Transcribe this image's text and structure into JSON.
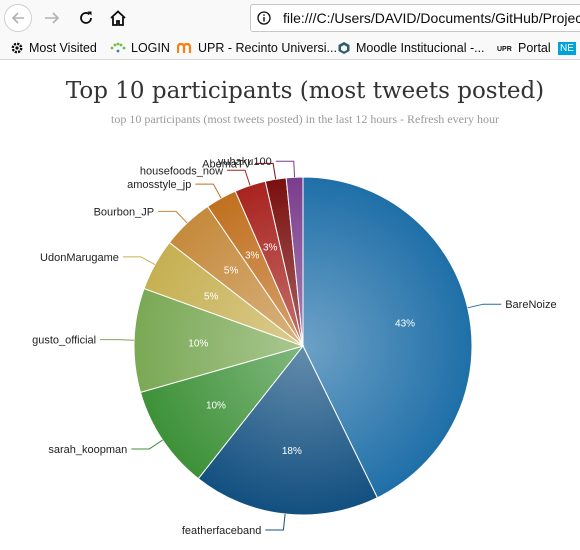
{
  "browser": {
    "url": "file:///C:/Users/DAVID/Documents/GitHub/Projec",
    "bookmarks": [
      {
        "label": "Most Visited",
        "icon": "gear-icon"
      },
      {
        "label": "LOGIN",
        "icon": "dots-icon"
      },
      {
        "label": "UPR - Recinto Universi...",
        "icon": "moodle-m-icon"
      },
      {
        "label": "Moodle Institucional -...",
        "icon": "hexagon-icon"
      },
      {
        "label": "Portal",
        "icon": "upr-logo-icon"
      },
      {
        "label": "NE",
        "icon": "ne-badge-icon"
      }
    ]
  },
  "chart": {
    "title": "Top 10 participants (most tweets posted)",
    "subtitle": "top 10 participants (most tweets posted) in the last 12 hours - Refresh every hour"
  },
  "chart_data": {
    "type": "pie",
    "title": "Top 10 participants (most tweets posted)",
    "subtitle": "top 10 participants (most tweets posted) in the last 12 hours - Refresh every hour",
    "slices": [
      {
        "name": "BareNoize",
        "value": 43,
        "label": "43%",
        "color": "#1f6fa8"
      },
      {
        "name": "featherfaceband",
        "value": 18,
        "label": "18%",
        "color": "#124f80"
      },
      {
        "name": "sarah_koopman",
        "value": 10,
        "label": "10%",
        "color": "#3d9138"
      },
      {
        "name": "gusto_official",
        "value": 10,
        "label": "10%",
        "color": "#7aa955"
      },
      {
        "name": "UdonMarugame",
        "value": 5,
        "label": "5%",
        "color": "#c6b052"
      },
      {
        "name": "Bourbon_JP",
        "value": 5,
        "label": "5%",
        "color": "#c58a3c"
      },
      {
        "name": "amosstyle_jp",
        "value": 3,
        "label": "3%",
        "color": "#c0701f"
      },
      {
        "name": "housefoods_now",
        "value": 3,
        "label": "3%",
        "color": "#a8231f"
      },
      {
        "name": "AbemaTV",
        "value": 2,
        "label": "",
        "color": "#7a0f0f"
      },
      {
        "name": "yuhaku100",
        "value": 1.6,
        "label": "",
        "color": "#7a3d8c"
      }
    ]
  }
}
